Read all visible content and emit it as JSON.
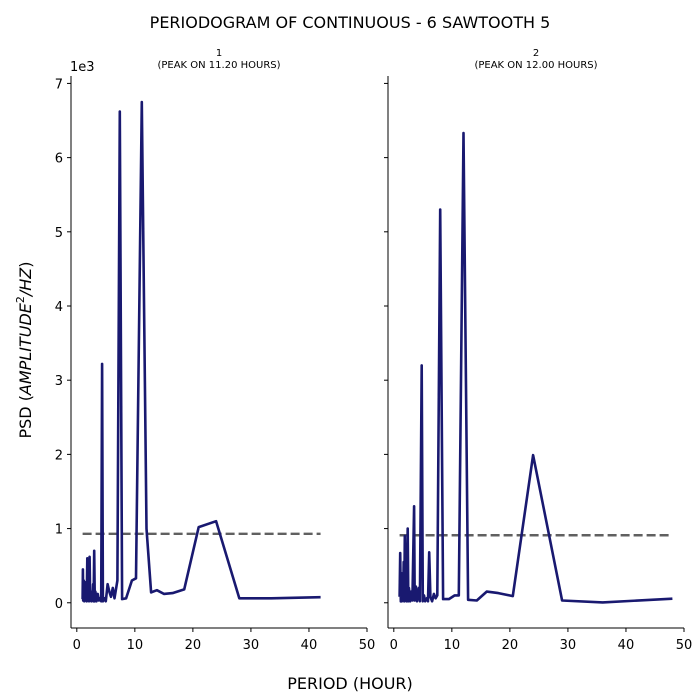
{
  "chart_data": {
    "type": "line",
    "title": "PERIODOGRAM OF CONTINUOUS - 6 SAWTOOTH 5",
    "xlabel": "PERIOD (HOUR)",
    "ylabel_prefix": "PSD (",
    "ylabel_math_text": "AMPLITUDE",
    "ylabel_superscript": "2",
    "ylabel_math_tail": "/HZ",
    "ylabel_suffix": ")",
    "y_offset_text": "1e3",
    "xlim": [
      -1,
      50
    ],
    "ylim": [
      -340,
      7100
    ],
    "xticks": [
      0,
      10,
      20,
      30,
      40,
      50
    ],
    "yticks": [
      0,
      1000,
      2000,
      3000,
      4000,
      5000,
      6000,
      7000
    ],
    "ytick_labels": [
      "0",
      "1",
      "2",
      "3",
      "4",
      "5",
      "6",
      "7"
    ],
    "xtick_labels": [
      "0",
      "10",
      "20",
      "30",
      "40",
      "50"
    ],
    "grid": false,
    "line_color": "#191970",
    "threshold_color": "#606060",
    "panels": [
      {
        "title_line1": "1",
        "title_line2": "(PEAK ON 11.20 HOURS)",
        "threshold": 930,
        "series": [
          [
            1.0,
            50
          ],
          [
            1.05,
            450
          ],
          [
            1.1,
            30
          ],
          [
            1.2,
            300
          ],
          [
            1.3,
            20
          ],
          [
            1.4,
            120
          ],
          [
            1.5,
            30
          ],
          [
            1.6,
            280
          ],
          [
            1.7,
            20
          ],
          [
            1.8,
            600
          ],
          [
            1.9,
            30
          ],
          [
            2.0,
            200
          ],
          [
            2.1,
            20
          ],
          [
            2.2,
            620
          ],
          [
            2.3,
            30
          ],
          [
            2.4,
            150
          ],
          [
            2.5,
            20
          ],
          [
            2.6,
            90
          ],
          [
            2.7,
            30
          ],
          [
            2.8,
            250
          ],
          [
            2.9,
            20
          ],
          [
            3.0,
            700
          ],
          [
            3.1,
            20
          ],
          [
            3.2,
            150
          ],
          [
            3.4,
            20
          ],
          [
            3.6,
            120
          ],
          [
            3.8,
            30
          ],
          [
            4.0,
            60
          ],
          [
            4.2,
            20
          ],
          [
            4.35,
            3220
          ],
          [
            4.5,
            20
          ],
          [
            4.8,
            60
          ],
          [
            5.0,
            20
          ],
          [
            5.3,
            250
          ],
          [
            5.6,
            150
          ],
          [
            5.9,
            80
          ],
          [
            6.2,
            200
          ],
          [
            6.5,
            60
          ],
          [
            7.0,
            300
          ],
          [
            7.4,
            6620
          ],
          [
            7.8,
            50
          ],
          [
            8.5,
            60
          ],
          [
            9.5,
            300
          ],
          [
            10.2,
            330
          ],
          [
            11.2,
            6750
          ],
          [
            12.0,
            1000
          ],
          [
            12.8,
            140
          ],
          [
            13.8,
            170
          ],
          [
            15.0,
            120
          ],
          [
            16.5,
            130
          ],
          [
            18.5,
            180
          ],
          [
            21.0,
            1020
          ],
          [
            24.0,
            1100
          ],
          [
            28.0,
            60
          ],
          [
            33.5,
            60
          ],
          [
            42.0,
            75
          ]
        ]
      },
      {
        "title_line1": "2",
        "title_line2": "(PEAK ON 12.00 HOURS)",
        "threshold": 910,
        "series": [
          [
            1.0,
            80
          ],
          [
            1.1,
            670
          ],
          [
            1.2,
            20
          ],
          [
            1.3,
            400
          ],
          [
            1.4,
            20
          ],
          [
            1.5,
            200
          ],
          [
            1.6,
            30
          ],
          [
            1.7,
            550
          ],
          [
            1.8,
            20
          ],
          [
            1.9,
            900
          ],
          [
            2.0,
            30
          ],
          [
            2.1,
            250
          ],
          [
            2.2,
            20
          ],
          [
            2.4,
            1000
          ],
          [
            2.5,
            20
          ],
          [
            2.6,
            200
          ],
          [
            2.8,
            20
          ],
          [
            3.0,
            150
          ],
          [
            3.2,
            30
          ],
          [
            3.5,
            1300
          ],
          [
            3.6,
            30
          ],
          [
            3.8,
            220
          ],
          [
            4.0,
            20
          ],
          [
            4.3,
            200
          ],
          [
            4.5,
            20
          ],
          [
            4.8,
            3200
          ],
          [
            5.0,
            20
          ],
          [
            5.2,
            100
          ],
          [
            5.4,
            20
          ],
          [
            5.7,
            60
          ],
          [
            5.9,
            20
          ],
          [
            6.1,
            680
          ],
          [
            6.3,
            80
          ],
          [
            6.6,
            20
          ],
          [
            6.9,
            120
          ],
          [
            7.2,
            60
          ],
          [
            7.5,
            100
          ],
          [
            8.0,
            5300
          ],
          [
            8.5,
            50
          ],
          [
            9.5,
            50
          ],
          [
            10.5,
            100
          ],
          [
            11.2,
            100
          ],
          [
            12.0,
            6330
          ],
          [
            12.8,
            40
          ],
          [
            14.3,
            30
          ],
          [
            16.0,
            150
          ],
          [
            18.0,
            130
          ],
          [
            20.5,
            90
          ],
          [
            24.0,
            1990
          ],
          [
            29.0,
            30
          ],
          [
            36.0,
            5
          ],
          [
            48.0,
            55
          ]
        ]
      }
    ]
  }
}
